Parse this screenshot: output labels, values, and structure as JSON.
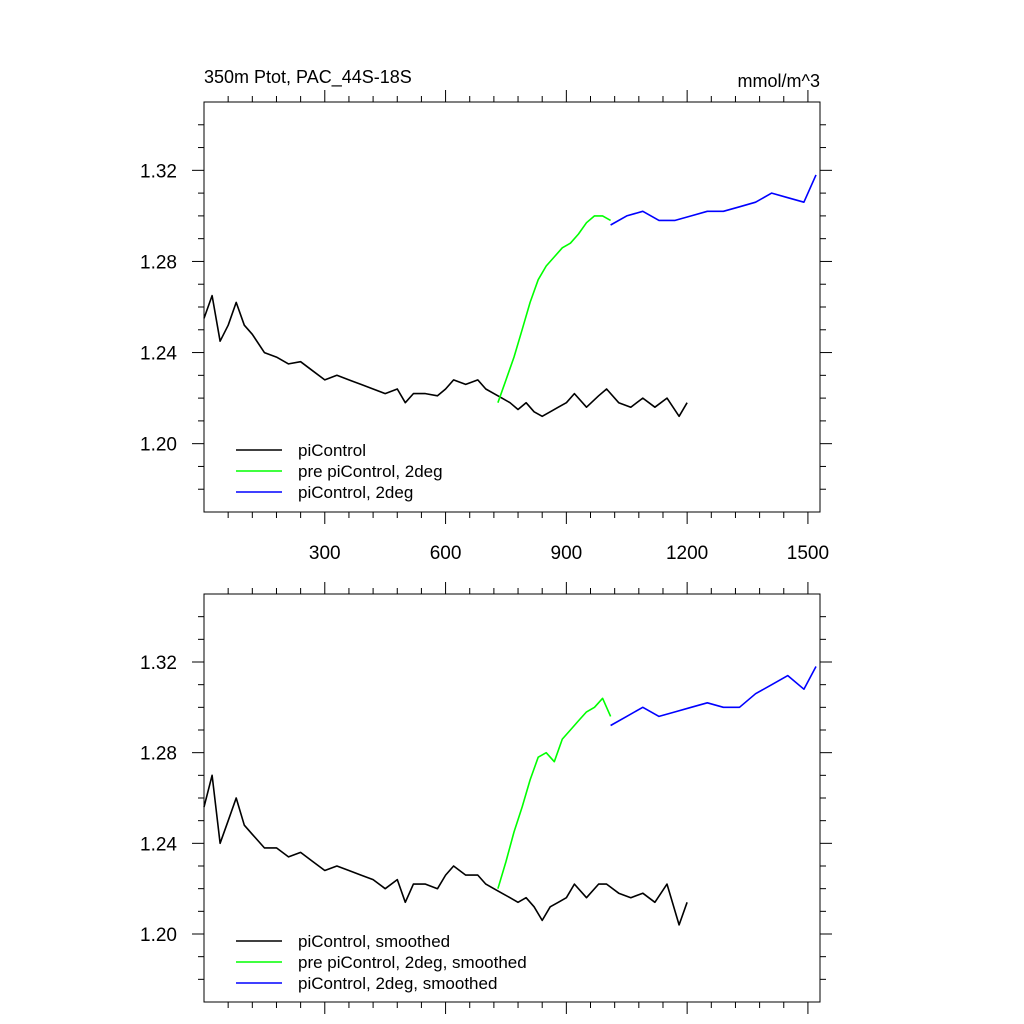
{
  "title_left": "350m Ptot, PAC_44S-18S",
  "title_right": "mmol/m^3",
  "x_ticks": [
    300,
    600,
    900,
    1200,
    1500
  ],
  "x_range": [
    0,
    1530
  ],
  "y_ticks": [
    1.2,
    1.24,
    1.28,
    1.32
  ],
  "y_tick_labels": [
    "1.20",
    "1.24",
    "1.28",
    "1.32"
  ],
  "y_range": [
    1.17,
    1.35
  ],
  "colors": {
    "piControl": "#000000",
    "pre": "#00ff00",
    "pi2deg": "#0000ff"
  },
  "chart_data": [
    {
      "type": "line",
      "panel": "top",
      "title": "350m Ptot, PAC_44S-18S",
      "units": "mmol/m^3",
      "xlim": [
        0,
        1530
      ],
      "ylim": [
        1.17,
        1.35
      ],
      "legend_position": "bottom-left",
      "series": [
        {
          "name": "piControl",
          "color": "#000000",
          "x": [
            0,
            20,
            40,
            60,
            80,
            100,
            120,
            150,
            180,
            210,
            240,
            270,
            300,
            330,
            360,
            390,
            420,
            450,
            480,
            500,
            520,
            550,
            580,
            600,
            620,
            650,
            680,
            700,
            720,
            740,
            760,
            780,
            800,
            820,
            840,
            860,
            880,
            900,
            920,
            950,
            980,
            1000,
            1030,
            1060,
            1090,
            1120,
            1150,
            1180,
            1200
          ],
          "y": [
            1.255,
            1.265,
            1.245,
            1.252,
            1.262,
            1.252,
            1.248,
            1.24,
            1.238,
            1.235,
            1.236,
            1.232,
            1.228,
            1.23,
            1.228,
            1.226,
            1.224,
            1.222,
            1.224,
            1.218,
            1.222,
            1.222,
            1.221,
            1.224,
            1.228,
            1.226,
            1.228,
            1.224,
            1.222,
            1.22,
            1.218,
            1.215,
            1.218,
            1.214,
            1.212,
            1.214,
            1.216,
            1.218,
            1.222,
            1.216,
            1.221,
            1.224,
            1.218,
            1.216,
            1.22,
            1.216,
            1.22,
            1.212,
            1.218
          ]
        },
        {
          "name": "pre piControl, 2deg",
          "color": "#00ff00",
          "x": [
            730,
            750,
            770,
            790,
            810,
            830,
            850,
            870,
            890,
            910,
            930,
            950,
            970,
            990,
            1010
          ],
          "y": [
            1.218,
            1.228,
            1.238,
            1.25,
            1.262,
            1.272,
            1.278,
            1.282,
            1.286,
            1.288,
            1.292,
            1.297,
            1.3,
            1.3,
            1.298
          ]
        },
        {
          "name": "piControl, 2deg",
          "color": "#0000ff",
          "x": [
            1010,
            1050,
            1090,
            1130,
            1170,
            1210,
            1250,
            1290,
            1330,
            1370,
            1410,
            1450,
            1490,
            1520
          ],
          "y": [
            1.296,
            1.3,
            1.302,
            1.298,
            1.298,
            1.3,
            1.302,
            1.302,
            1.304,
            1.306,
            1.31,
            1.308,
            1.306,
            1.318
          ]
        }
      ],
      "legend": [
        "piControl",
        "pre piControl, 2deg",
        "piControl, 2deg"
      ]
    },
    {
      "type": "line",
      "panel": "bottom",
      "xlim": [
        0,
        1530
      ],
      "ylim": [
        1.17,
        1.35
      ],
      "legend_position": "bottom-left",
      "series": [
        {
          "name": "piControl, smoothed",
          "color": "#000000",
          "x": [
            0,
            20,
            40,
            60,
            80,
            100,
            120,
            150,
            180,
            210,
            240,
            270,
            300,
            330,
            360,
            390,
            420,
            450,
            480,
            500,
            520,
            550,
            580,
            600,
            620,
            650,
            680,
            700,
            720,
            740,
            760,
            780,
            800,
            820,
            840,
            860,
            880,
            900,
            920,
            950,
            980,
            1000,
            1030,
            1060,
            1090,
            1120,
            1150,
            1180,
            1200
          ],
          "y": [
            1.256,
            1.27,
            1.24,
            1.25,
            1.26,
            1.248,
            1.244,
            1.238,
            1.238,
            1.234,
            1.236,
            1.232,
            1.228,
            1.23,
            1.228,
            1.226,
            1.224,
            1.22,
            1.224,
            1.214,
            1.222,
            1.222,
            1.22,
            1.226,
            1.23,
            1.226,
            1.226,
            1.222,
            1.22,
            1.218,
            1.216,
            1.214,
            1.216,
            1.212,
            1.206,
            1.212,
            1.214,
            1.216,
            1.222,
            1.216,
            1.222,
            1.222,
            1.218,
            1.216,
            1.218,
            1.214,
            1.222,
            1.204,
            1.214
          ]
        },
        {
          "name": "pre piControl, 2deg, smoothed",
          "color": "#00ff00",
          "x": [
            730,
            750,
            770,
            790,
            810,
            830,
            850,
            870,
            890,
            910,
            930,
            950,
            970,
            990,
            1010
          ],
          "y": [
            1.22,
            1.232,
            1.245,
            1.256,
            1.268,
            1.278,
            1.28,
            1.276,
            1.286,
            1.29,
            1.294,
            1.298,
            1.3,
            1.304,
            1.296
          ]
        },
        {
          "name": "piControl, 2deg, smoothed",
          "color": "#0000ff",
          "x": [
            1010,
            1050,
            1090,
            1130,
            1170,
            1210,
            1250,
            1290,
            1330,
            1370,
            1410,
            1450,
            1490,
            1520
          ],
          "y": [
            1.292,
            1.296,
            1.3,
            1.296,
            1.298,
            1.3,
            1.302,
            1.3,
            1.3,
            1.306,
            1.31,
            1.314,
            1.308,
            1.318
          ]
        }
      ],
      "legend": [
        "piControl, smoothed",
        "pre piControl, 2deg, smoothed",
        "piControl, 2deg, smoothed"
      ]
    }
  ]
}
